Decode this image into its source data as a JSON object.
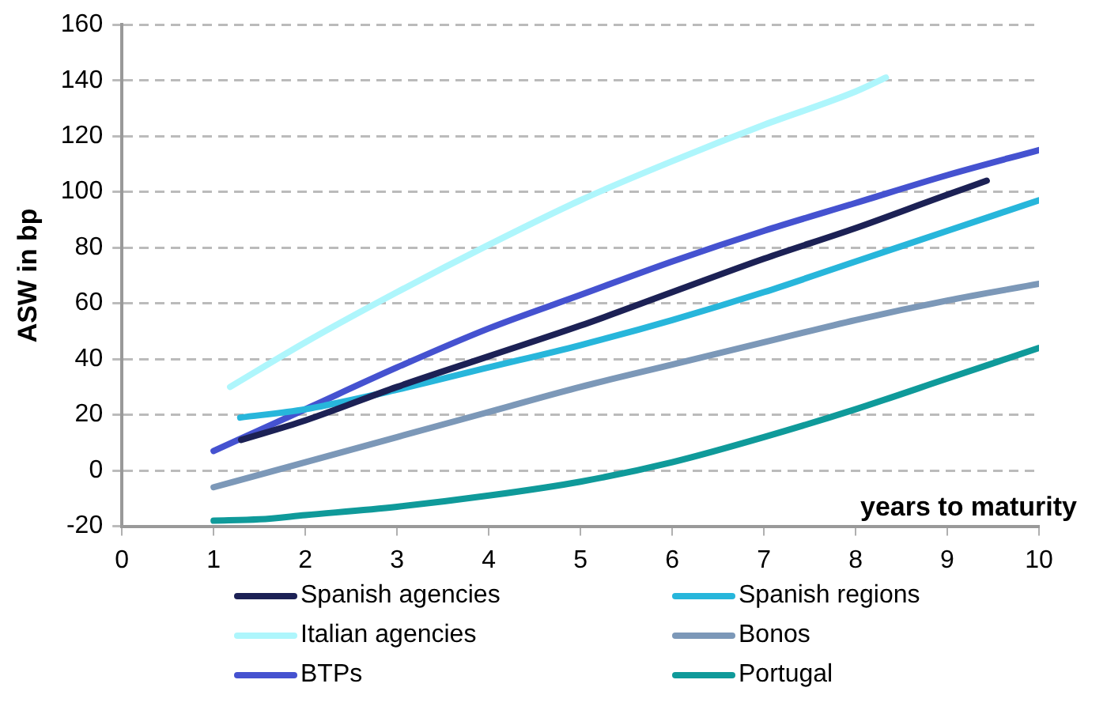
{
  "chart_data": {
    "type": "line",
    "xlabel": "years to maturity",
    "ylabel": "ASW in bp",
    "xlim": [
      0,
      10
    ],
    "xticks": [
      0,
      1,
      2,
      3,
      4,
      5,
      6,
      7,
      8,
      9,
      10
    ],
    "ylim": [
      -20,
      160
    ],
    "yticks": [
      -20,
      0,
      20,
      40,
      60,
      80,
      100,
      120,
      140,
      160
    ],
    "grid": "y",
    "legend": "bottom",
    "marker": "none",
    "line_style": "solid",
    "series": [
      {
        "name": "Spanish agencies",
        "color": "#1c2155",
        "x": [
          1.3,
          2,
          3,
          4,
          5,
          6,
          7,
          8,
          9,
          9.43
        ],
        "values": [
          11,
          18,
          30,
          41,
          52,
          64,
          76,
          87,
          99,
          104
        ]
      },
      {
        "name": "Spanish regions",
        "color": "#27b6db",
        "x": [
          1.29,
          2,
          3,
          4,
          5,
          6,
          7,
          8,
          9,
          10
        ],
        "values": [
          19,
          22,
          29,
          37,
          45,
          54,
          64,
          75,
          86,
          97
        ]
      },
      {
        "name": "Italian agencies",
        "color": "#aef6fc",
        "x": [
          1.18,
          2,
          3,
          4,
          5,
          6,
          7,
          8,
          8.33
        ],
        "values": [
          30,
          46,
          64,
          81,
          97,
          111,
          124,
          136,
          141
        ]
      },
      {
        "name": "Bonos",
        "color": "#7c98b8",
        "x": [
          1,
          2,
          3,
          4,
          5,
          6,
          7,
          8,
          9,
          10
        ],
        "values": [
          -6,
          3,
          12,
          21,
          30,
          38,
          46,
          54,
          61,
          67
        ]
      },
      {
        "name": "BTPs",
        "color": "#4552d0",
        "x": [
          1,
          2,
          3,
          4,
          5,
          6,
          7,
          8,
          9,
          10
        ],
        "values": [
          7,
          22,
          37,
          51,
          63,
          75,
          86,
          96,
          106,
          115
        ]
      },
      {
        "name": "Portugal",
        "color": "#0f9a9a",
        "x": [
          1,
          1.5,
          2,
          3,
          4,
          5,
          6,
          7,
          8,
          9,
          10
        ],
        "values": [
          -18,
          -17.5,
          -16,
          -13,
          -9,
          -4,
          3,
          12,
          22,
          33,
          44
        ]
      }
    ]
  }
}
